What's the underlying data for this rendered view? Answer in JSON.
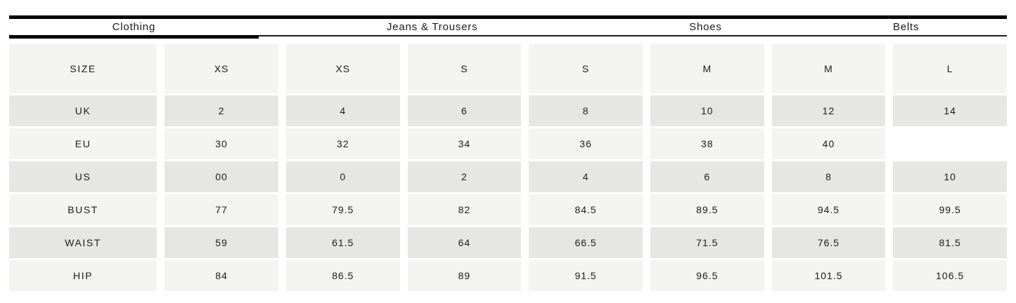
{
  "tabs": [
    {
      "label": "Clothing",
      "active": true
    },
    {
      "label": "Jeans & Trousers",
      "active": false
    },
    {
      "label": "Shoes",
      "active": false
    },
    {
      "label": "Belts",
      "active": false
    }
  ],
  "table": {
    "rows": [
      {
        "label": "SIZE",
        "values": [
          "XS",
          "XS",
          "S",
          "S",
          "M",
          "M",
          "L"
        ]
      },
      {
        "label": "UK",
        "values": [
          "2",
          "4",
          "6",
          "8",
          "10",
          "12",
          "14"
        ]
      },
      {
        "label": "EU",
        "values": [
          "30",
          "32",
          "34",
          "36",
          "38",
          "40",
          ""
        ]
      },
      {
        "label": "US",
        "values": [
          "00",
          "0",
          "2",
          "4",
          "6",
          "8",
          "10"
        ]
      },
      {
        "label": "BUST",
        "values": [
          "77",
          "79.5",
          "82",
          "84.5",
          "89.5",
          "94.5",
          "99.5"
        ]
      },
      {
        "label": "WAIST",
        "values": [
          "59",
          "61.5",
          "64",
          "66.5",
          "71.5",
          "76.5",
          "81.5"
        ]
      },
      {
        "label": "HIP",
        "values": [
          "84",
          "86.5",
          "89",
          "91.5",
          "96.5",
          "101.5",
          "106.5"
        ]
      }
    ]
  },
  "colors": {
    "row_light": "#f4f4f2",
    "row_dark": "#e6e6e4",
    "text": "#1a1a1a",
    "line": "#000000"
  }
}
